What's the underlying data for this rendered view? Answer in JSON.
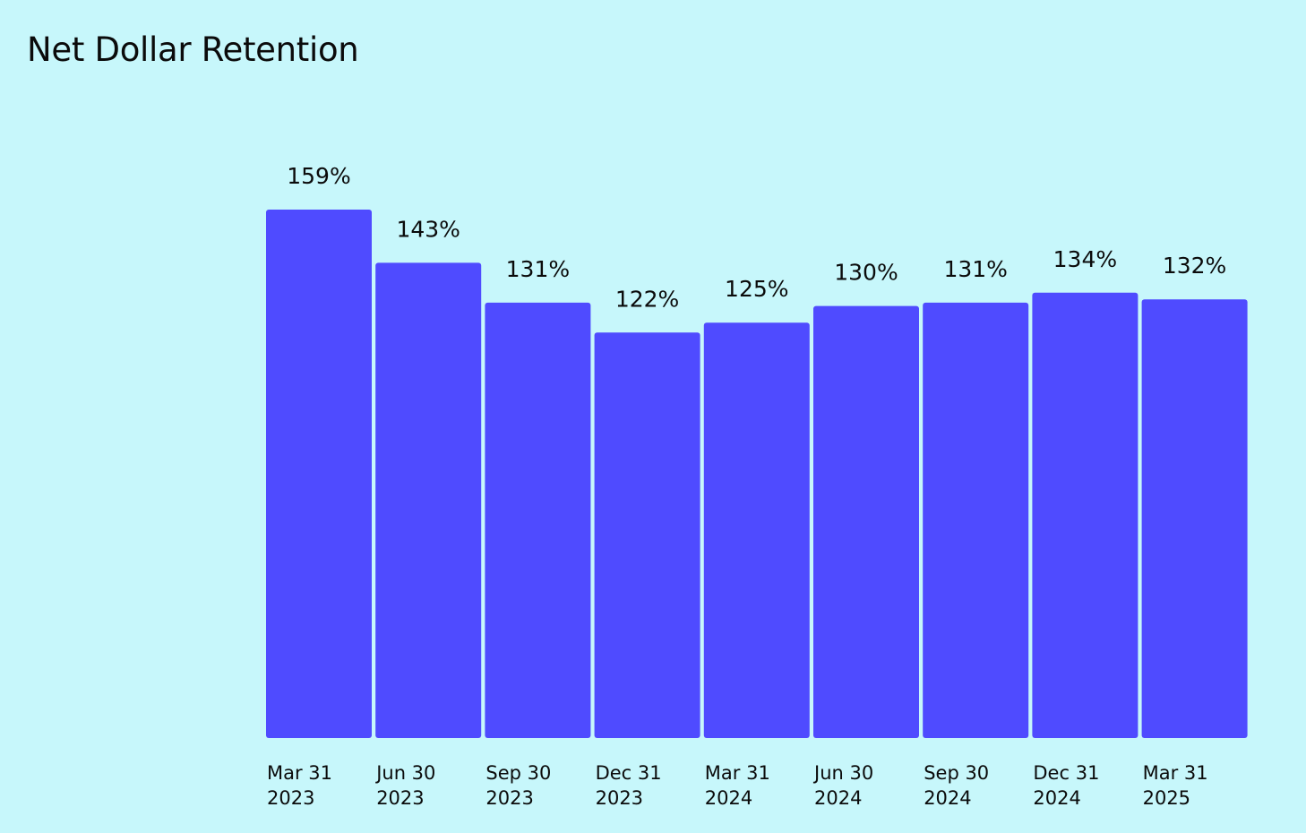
{
  "colors": {
    "background": "#c7f7fb",
    "bar": "#4f4bff",
    "text": "#0b0b0b"
  },
  "chart_data": {
    "type": "bar",
    "title": "Net Dollar Retention",
    "xlabel": "",
    "ylabel": "",
    "categories": [
      [
        "Mar 31",
        "2023"
      ],
      [
        "Jun 30",
        "2023"
      ],
      [
        "Sep 30",
        "2023"
      ],
      [
        "Dec 31",
        "2023"
      ],
      [
        "Mar 31",
        "2024"
      ],
      [
        "Jun 30",
        "2024"
      ],
      [
        "Sep 30",
        "2024"
      ],
      [
        "Dec 31",
        "2024"
      ],
      [
        "Mar 31",
        "2025"
      ]
    ],
    "values": [
      159,
      143,
      131,
      122,
      125,
      130,
      131,
      134,
      132
    ],
    "data_labels": [
      "159%",
      "143%",
      "131%",
      "122%",
      "125%",
      "130%",
      "131%",
      "134%",
      "132%"
    ],
    "unit": "%",
    "ylim": [
      0,
      159
    ],
    "grid": false,
    "legend": "none"
  }
}
